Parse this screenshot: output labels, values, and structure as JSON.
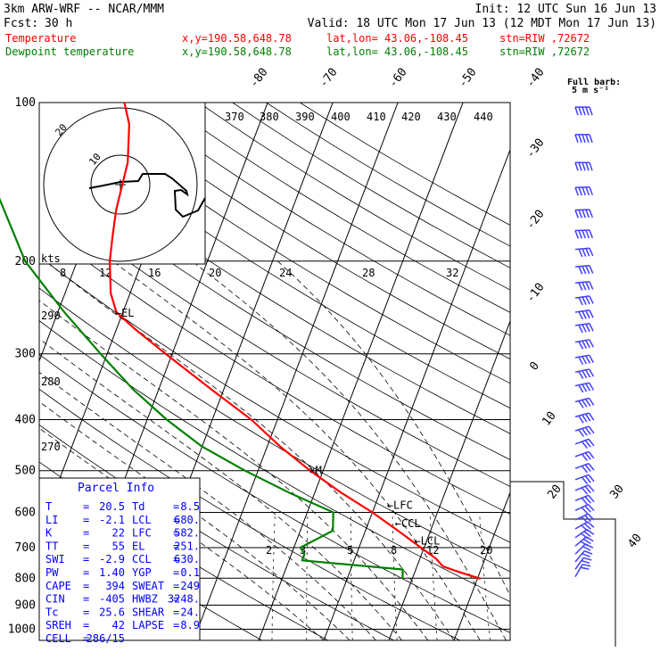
{
  "header": {
    "model": "3km ARW-WRF -- NCAR/MMM",
    "init": "Init: 12 UTC Sun 16 Jun 13",
    "fcst_label": "Fcst:",
    "fcst_value": "30 h",
    "valid": "Valid: 18 UTC Mon 17 Jun 13 (12 MDT Mon 17 Jun 13)",
    "lines": [
      {
        "label": "Temperature",
        "xy": "x,y=190.58,648.78",
        "latlon": "lat,lon= 43.06,-108.45",
        "stn": "stn=RIW ,72672",
        "color": "#ff0000"
      },
      {
        "label": "Dewpoint temperature",
        "xy": "x,y=190.58,648.78",
        "latlon": "lat,lon= 43.06,-108.45",
        "stn": "stn=RIW ,72672",
        "color": "#008000"
      }
    ]
  },
  "barb_legend": {
    "line1": "Full barb:",
    "line2": "5 m s⁻¹"
  },
  "hodograph": {
    "units": "kts",
    "ring_labels": [
      "10",
      "20"
    ]
  },
  "parcel_info": {
    "title": "Parcel Info",
    "rows": [
      [
        {
          "k": "T",
          "v": "20.5"
        },
        {
          "k": "Td",
          "v": "8.5"
        }
      ],
      [
        {
          "k": "LI",
          "v": "-2.1"
        },
        {
          "k": "LCL",
          "v": "680."
        }
      ],
      [
        {
          "k": "K",
          "v": "22"
        },
        {
          "k": "LFC",
          "v": "582."
        }
      ],
      [
        {
          "k": "TT",
          "v": "55"
        },
        {
          "k": "EL",
          "v": "251."
        }
      ],
      [
        {
          "k": "SWI",
          "v": "-2.9"
        },
        {
          "k": "CCL",
          "v": "630."
        }
      ],
      [
        {
          "k": "PW",
          "v": "1.40"
        },
        {
          "k": "YGP",
          "v": "0.1"
        }
      ],
      [
        {
          "k": "CAPE",
          "v": "394"
        },
        {
          "k": "SWEAT",
          "v": "249"
        }
      ],
      [
        {
          "k": "CIN",
          "v": "-405"
        },
        {
          "k": "HWBZ",
          "v": "3248."
        }
      ],
      [
        {
          "k": "Tc",
          "v": "25.6"
        },
        {
          "k": "SHEAR",
          "v": "24."
        }
      ],
      [
        {
          "k": "SREH",
          "v": "42"
        },
        {
          "k": "LAPSE",
          "v": "8.9"
        }
      ],
      [
        {
          "k": "CELL",
          "v": "286/15"
        }
      ]
    ]
  },
  "chart_data": {
    "type": "line",
    "chart_kind": "Skew-T log-P sounding",
    "y_axis": {
      "scale": "log",
      "units": "hPa",
      "ticks": [
        100,
        200,
        300,
        400,
        500,
        600,
        700,
        800,
        900,
        1000
      ]
    },
    "x_axis": {
      "units": "°C",
      "skewed": true,
      "range": [
        -40,
        40
      ]
    },
    "isotherm_labels": [
      "-80",
      "-70",
      "-60",
      "-50",
      "-40",
      "-30",
      "-20",
      "-10",
      "0",
      "10",
      "20",
      "30",
      "40"
    ],
    "theta_labels_top": [
      "370",
      "380",
      "390",
      "400",
      "410",
      "420",
      "430",
      "440"
    ],
    "theta_labels_left": [
      "290",
      "280",
      "270"
    ],
    "mixing_ratio_labels_upper": [
      "8",
      "12",
      "16",
      "20",
      "24",
      "28",
      "32"
    ],
    "mixing_ratio_labels_lower": [
      "2",
      "3",
      "5",
      "8",
      "12",
      "20"
    ],
    "level_markers": [
      {
        "label": "EL",
        "p": 251
      },
      {
        "label": "LFC",
        "p": 582
      },
      {
        "label": "CCL",
        "p": 630
      },
      {
        "label": "LCL",
        "p": 680
      },
      {
        "label": "M",
        "p": 500
      }
    ],
    "series": [
      {
        "name": "Temperature",
        "color": "#ff0000",
        "points": [
          {
            "p": 802,
            "t": 20.5
          },
          {
            "p": 780,
            "t": 17
          },
          {
            "p": 760,
            "t": 14
          },
          {
            "p": 735,
            "t": 12.5
          },
          {
            "p": 700,
            "t": 9.5
          },
          {
            "p": 650,
            "t": 5
          },
          {
            "p": 600,
            "t": 0
          },
          {
            "p": 550,
            "t": -6
          },
          {
            "p": 500,
            "t": -12
          },
          {
            "p": 450,
            "t": -18
          },
          {
            "p": 400,
            "t": -24
          },
          {
            "p": 350,
            "t": -32
          },
          {
            "p": 300,
            "t": -41
          },
          {
            "p": 270,
            "t": -47
          },
          {
            "p": 250,
            "t": -51
          },
          {
            "p": 230,
            "t": -53
          },
          {
            "p": 200,
            "t": -55
          },
          {
            "p": 180,
            "t": -56
          },
          {
            "p": 160,
            "t": -57
          },
          {
            "p": 130,
            "t": -58
          },
          {
            "p": 110,
            "t": -60
          },
          {
            "p": 100,
            "t": -62
          }
        ]
      },
      {
        "name": "Dewpoint temperature",
        "color": "#008000",
        "points": [
          {
            "p": 802,
            "t": 8.5
          },
          {
            "p": 770,
            "t": 8
          },
          {
            "p": 740,
            "t": -8
          },
          {
            "p": 720,
            "t": -8
          },
          {
            "p": 700,
            "t": -9
          },
          {
            "p": 650,
            "t": -5
          },
          {
            "p": 600,
            "t": -6
          },
          {
            "p": 550,
            "t": -14
          },
          {
            "p": 500,
            "t": -22
          },
          {
            "p": 450,
            "t": -30
          },
          {
            "p": 400,
            "t": -37
          },
          {
            "p": 350,
            "t": -44
          },
          {
            "p": 300,
            "t": -51
          },
          {
            "p": 250,
            "t": -59
          },
          {
            "p": 200,
            "t": -68
          },
          {
            "p": 150,
            "t": -76
          },
          {
            "p": 120,
            "t": -80
          },
          {
            "p": 100,
            "t": -82
          }
        ]
      }
    ],
    "wind_profile": {
      "units": "m s⁻¹",
      "barbs": [
        {
          "p": 102,
          "dir": 270,
          "spd": 25
        },
        {
          "p": 115,
          "dir": 270,
          "spd": 25
        },
        {
          "p": 130,
          "dir": 270,
          "spd": 25
        },
        {
          "p": 145,
          "dir": 268,
          "spd": 25
        },
        {
          "p": 160,
          "dir": 268,
          "spd": 25
        },
        {
          "p": 175,
          "dir": 268,
          "spd": 25
        },
        {
          "p": 190,
          "dir": 265,
          "spd": 22
        },
        {
          "p": 205,
          "dir": 265,
          "spd": 22
        },
        {
          "p": 220,
          "dir": 265,
          "spd": 22
        },
        {
          "p": 235,
          "dir": 262,
          "spd": 20
        },
        {
          "p": 250,
          "dir": 262,
          "spd": 20
        },
        {
          "p": 265,
          "dir": 262,
          "spd": 20
        },
        {
          "p": 285,
          "dir": 260,
          "spd": 20
        },
        {
          "p": 305,
          "dir": 260,
          "spd": 20
        },
        {
          "p": 325,
          "dir": 258,
          "spd": 20
        },
        {
          "p": 345,
          "dir": 258,
          "spd": 20
        },
        {
          "p": 370,
          "dir": 255,
          "spd": 20
        },
        {
          "p": 395,
          "dir": 255,
          "spd": 20
        },
        {
          "p": 420,
          "dir": 252,
          "spd": 20
        },
        {
          "p": 445,
          "dir": 250,
          "spd": 15
        },
        {
          "p": 470,
          "dir": 250,
          "spd": 15
        },
        {
          "p": 495,
          "dir": 250,
          "spd": 15
        },
        {
          "p": 520,
          "dir": 250,
          "spd": 15
        },
        {
          "p": 545,
          "dir": 248,
          "spd": 15
        },
        {
          "p": 570,
          "dir": 248,
          "spd": 15
        },
        {
          "p": 595,
          "dir": 245,
          "spd": 15
        },
        {
          "p": 620,
          "dir": 245,
          "spd": 15
        },
        {
          "p": 645,
          "dir": 240,
          "spd": 15
        },
        {
          "p": 670,
          "dir": 235,
          "spd": 15
        },
        {
          "p": 695,
          "dir": 230,
          "spd": 15
        },
        {
          "p": 720,
          "dir": 225,
          "spd": 10
        },
        {
          "p": 745,
          "dir": 220,
          "spd": 10
        },
        {
          "p": 770,
          "dir": 215,
          "spd": 10
        },
        {
          "p": 795,
          "dir": 210,
          "spd": 10
        }
      ]
    }
  }
}
